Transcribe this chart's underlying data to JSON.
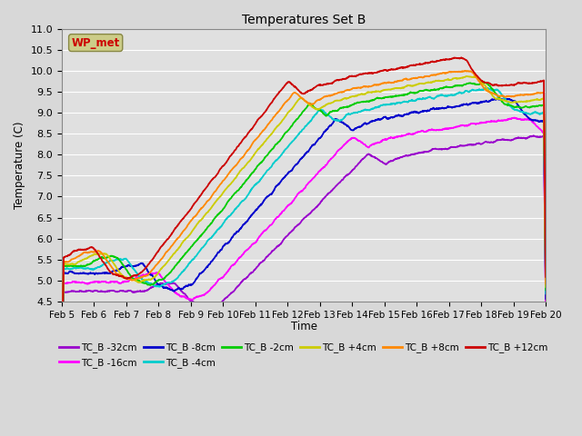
{
  "title": "Temperatures Set B",
  "xlabel": "Time",
  "ylabel": "Temperature (C)",
  "ylim": [
    4.5,
    11.0
  ],
  "xlim": [
    0,
    15
  ],
  "x_tick_labels": [
    "Feb 5",
    "Feb 6",
    "Feb 7",
    "Feb 8",
    "Feb 9",
    "Feb 10",
    "Feb 11",
    "Feb 12",
    "Feb 13",
    "Feb 14",
    "Feb 15",
    "Feb 16",
    "Feb 17",
    "Feb 18",
    "Feb 19",
    "Feb 20"
  ],
  "y_ticks": [
    4.5,
    5.0,
    5.5,
    6.0,
    6.5,
    7.0,
    7.5,
    8.0,
    8.5,
    9.0,
    9.5,
    10.0,
    10.5,
    11.0
  ],
  "series": [
    {
      "label": "TC_B -32cm",
      "color": "#9900cc"
    },
    {
      "label": "TC_B -16cm",
      "color": "#ff00ff"
    },
    {
      "label": "TC_B -8cm",
      "color": "#0000cc"
    },
    {
      "label": "TC_B -4cm",
      "color": "#00cccc"
    },
    {
      "label": "TC_B -2cm",
      "color": "#00cc00"
    },
    {
      "label": "TC_B +4cm",
      "color": "#cccc00"
    },
    {
      "label": "TC_B +8cm",
      "color": "#ff8800"
    },
    {
      "label": "TC_B +12cm",
      "color": "#cc0000"
    }
  ],
  "wp_met_box_color": "#cccc88",
  "wp_met_text_color": "#cc0000",
  "background_color": "#e0e0e0",
  "grid_color": "#ffffff",
  "n_points": 3000
}
